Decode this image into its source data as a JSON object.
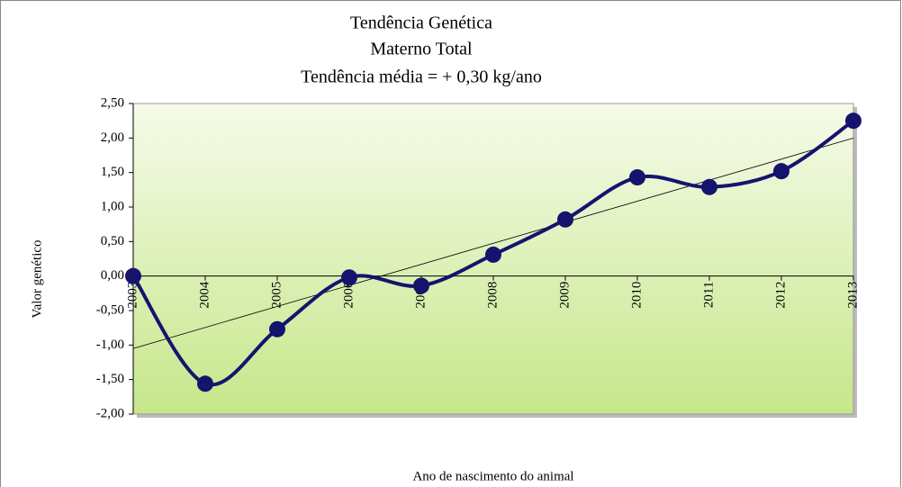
{
  "chart_data": {
    "type": "line",
    "title": [
      "Tendência Genética",
      "Materno Total",
      "Tendência média = + 0,30 kg/ano"
    ],
    "x_label": "Ano de nascimento do animal",
    "y_label": "Valor genético",
    "categories": [
      "2003",
      "2004",
      "2005",
      "2006",
      "2007",
      "2008",
      "2009",
      "2010",
      "2011",
      "2012",
      "2013"
    ],
    "series": [
      {
        "color": "#14146e",
        "values": [
          0.0,
          -1.56,
          -0.77,
          -0.02,
          -0.14,
          0.31,
          0.82,
          1.43,
          1.29,
          1.52,
          2.25
        ]
      }
    ],
    "trend_line": {
      "color": "#000000",
      "values": [
        -1.05,
        2.0
      ]
    },
    "ylim": [
      -2.0,
      2.5
    ],
    "yticks": [
      {
        "value": -2.0,
        "label": "-2,00"
      },
      {
        "value": -1.5,
        "label": "-1,50"
      },
      {
        "value": -1.0,
        "label": "-1,00"
      },
      {
        "value": -0.5,
        "label": "-0,50"
      },
      {
        "value": 0.0,
        "label": "0,00"
      },
      {
        "value": 0.5,
        "label": "0,50"
      },
      {
        "value": 1.0,
        "label": "1,00"
      },
      {
        "value": 1.5,
        "label": "1,50"
      },
      {
        "value": 2.0,
        "label": "2,00"
      },
      {
        "value": 2.5,
        "label": "2,50"
      }
    ],
    "smooth": true
  }
}
